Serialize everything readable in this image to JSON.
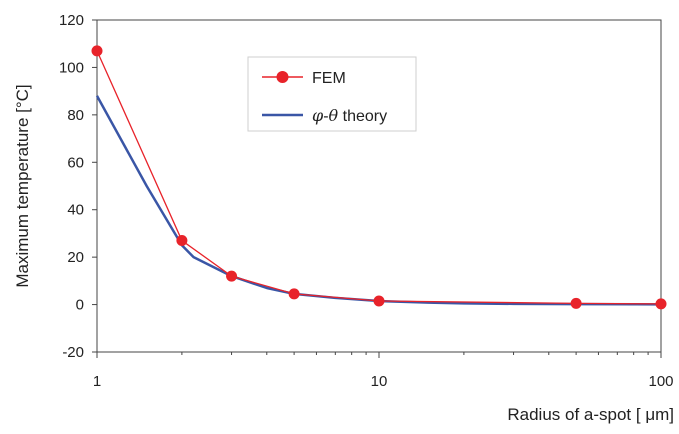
{
  "chart_data": {
    "type": "line",
    "xlabel": "Radius of a-spot [ μm]",
    "ylabel": "Maximum temperature [°C]",
    "xscale": "log",
    "xlim": [
      1,
      100
    ],
    "ylim": [
      -20,
      120
    ],
    "yticks": [
      -20,
      0,
      20,
      40,
      60,
      80,
      100,
      120
    ],
    "xticks": [
      1,
      10,
      100
    ],
    "ytick_labels": [
      "-20",
      "0",
      "20",
      "40",
      "60",
      "80",
      "100",
      "120"
    ],
    "xtick_labels": [
      "1",
      "10",
      "100"
    ],
    "grid": false,
    "legend": "upper-center",
    "series": [
      {
        "name": "FEM",
        "color": "#e8232a",
        "marker": "circle",
        "x": [
          1,
          2,
          3,
          5,
          10,
          50,
          100
        ],
        "y": [
          107,
          27,
          12,
          4.5,
          1.5,
          0.5,
          0.3
        ]
      },
      {
        "name_parts": [
          "φ",
          "-",
          "θ",
          " theory"
        ],
        "color": "#3a56a6",
        "marker": "none",
        "x": [
          1,
          1.5,
          2,
          2.2,
          3,
          4,
          5,
          7,
          10,
          15,
          20,
          30,
          50,
          100
        ],
        "y": [
          88,
          50,
          25,
          20,
          12,
          7,
          4.5,
          2.8,
          1.5,
          0.8,
          0.5,
          0.3,
          0.2,
          0.1
        ]
      }
    ]
  }
}
